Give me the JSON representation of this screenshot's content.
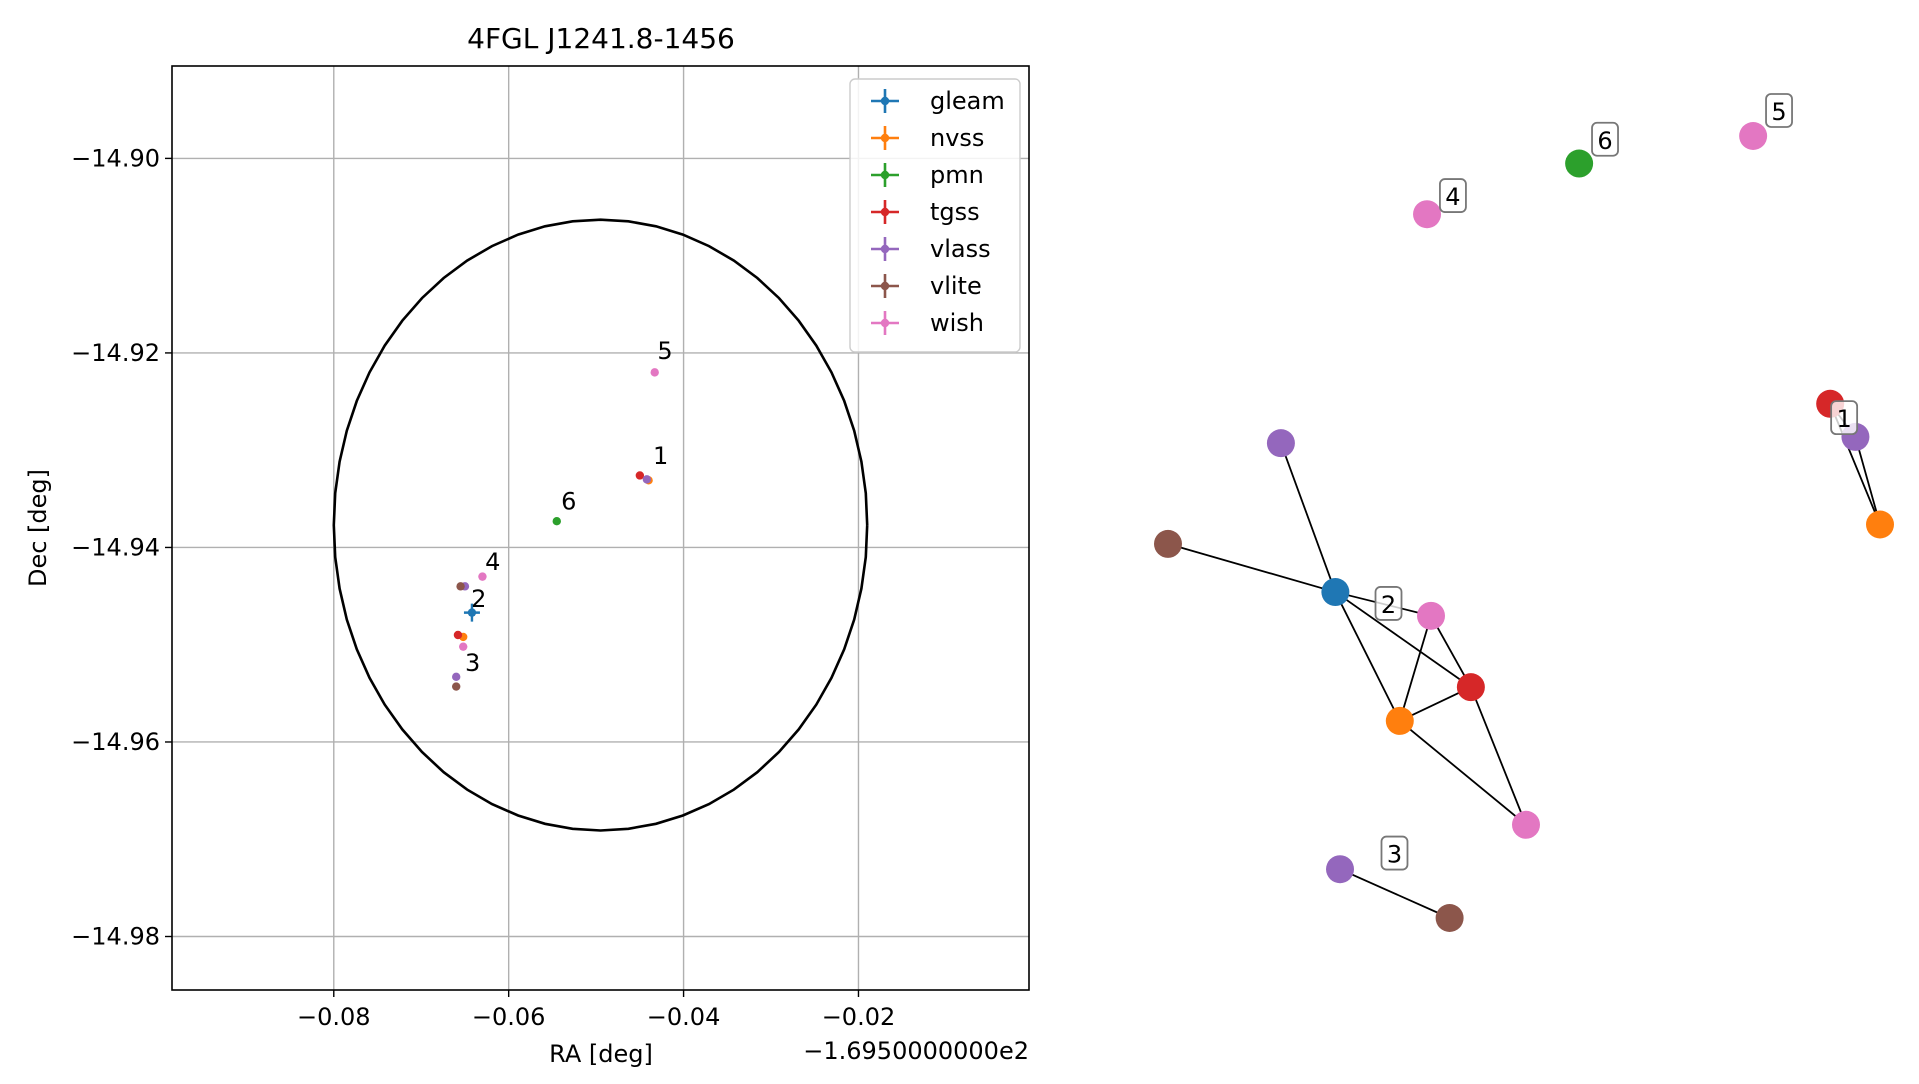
{
  "chart_data": [
    {
      "type": "scatter",
      "title": "4FGL J1241.8-1456",
      "xlabel": "RA [deg]",
      "ylabel": "Dec [deg]",
      "x_offset_text": "−1.6950000000e2",
      "xlim": [
        -0.0985,
        -0.0005
      ],
      "ylim": [
        -14.9855,
        -14.8905
      ],
      "xticks": [
        -0.08,
        -0.06,
        -0.04,
        -0.02
      ],
      "xtick_labels": [
        "−0.08",
        "−0.06",
        "−0.04",
        "−0.02"
      ],
      "yticks": [
        -14.9,
        -14.92,
        -14.94,
        -14.96,
        -14.98
      ],
      "ytick_labels": [
        "−14.90",
        "−14.92",
        "−14.94",
        "−14.96",
        "−14.98"
      ],
      "grid": true,
      "legend_position": "top-right",
      "ellipse": {
        "center": [
          -0.0495,
          -14.9377
        ],
        "semi_major": [
          0.0305,
          0.0314
        ]
      },
      "series": [
        {
          "name": "gleam",
          "color": "#1f77b4",
          "points": [
            [
              -0.0642,
              -14.9467
            ]
          ]
        },
        {
          "name": "nvss",
          "color": "#ff7f0e",
          "points": [
            [
              -0.0652,
              -14.9492
            ],
            [
              -0.044,
              -14.9331
            ]
          ]
        },
        {
          "name": "pmn",
          "color": "#2ca02c",
          "points": [
            [
              -0.0545,
              -14.9373
            ]
          ]
        },
        {
          "name": "tgss",
          "color": "#d62728",
          "points": [
            [
              -0.0658,
              -14.949
            ],
            [
              -0.045,
              -14.9326
            ]
          ]
        },
        {
          "name": "vlass",
          "color": "#9467bd",
          "points": [
            [
              -0.065,
              -14.944
            ],
            [
              -0.066,
              -14.9533
            ],
            [
              -0.0442,
              -14.933
            ]
          ]
        },
        {
          "name": "vlite",
          "color": "#8c564b",
          "points": [
            [
              -0.0655,
              -14.944
            ],
            [
              -0.066,
              -14.9543
            ]
          ]
        },
        {
          "name": "wish",
          "color": "#e377c2",
          "points": [
            [
              -0.0652,
              -14.9502
            ],
            [
              -0.063,
              -14.943
            ],
            [
              -0.0433,
              -14.922
            ]
          ]
        }
      ],
      "annotations": [
        {
          "text": "1",
          "x": -0.0435,
          "y": -14.9314
        },
        {
          "text": "2",
          "x": -0.0643,
          "y": -14.9461
        },
        {
          "text": "3",
          "x": -0.065,
          "y": -14.9527
        },
        {
          "text": "4",
          "x": -0.0627,
          "y": -14.9423
        },
        {
          "text": "5",
          "x": -0.043,
          "y": -14.9206
        },
        {
          "text": "6",
          "x": -0.054,
          "y": -14.9361
        }
      ]
    },
    {
      "type": "network",
      "nodes": [
        {
          "id": "n1",
          "color": "#d62728",
          "x": 0.899,
          "y": 0.655
        },
        {
          "id": "n2",
          "color": "#9467bd",
          "x": 0.937,
          "y": 0.602
        },
        {
          "id": "n3",
          "color": "#ff7f0e",
          "x": 0.974,
          "y": 0.462
        },
        {
          "id": "n4",
          "color": "#1f77b4",
          "x": 0.154,
          "y": 0.354
        },
        {
          "id": "n5",
          "color": "#8c564b",
          "x": -0.098,
          "y": 0.431
        },
        {
          "id": "n6",
          "color": "#9467bd",
          "x": 0.072,
          "y": 0.592
        },
        {
          "id": "n7",
          "color": "#e377c2",
          "x": 0.298,
          "y": 0.316
        },
        {
          "id": "n8",
          "color": "#d62728",
          "x": 0.358,
          "y": 0.202
        },
        {
          "id": "n9",
          "color": "#ff7f0e",
          "x": 0.251,
          "y": 0.148
        },
        {
          "id": "n10",
          "color": "#e377c2",
          "x": 0.441,
          "y": -0.018
        },
        {
          "id": "n11",
          "color": "#9467bd",
          "x": 0.161,
          "y": -0.089
        },
        {
          "id": "n12",
          "color": "#8c564b",
          "x": 0.326,
          "y": -0.167
        },
        {
          "id": "n13",
          "color": "#e377c2",
          "x": 0.292,
          "y": 0.958
        },
        {
          "id": "n14",
          "color": "#2ca02c",
          "x": 0.521,
          "y": 1.039
        },
        {
          "id": "n15",
          "color": "#e377c2",
          "x": 0.783,
          "y": 1.083
        }
      ],
      "edges": [
        [
          "n1",
          "n2"
        ],
        [
          "n1",
          "n3"
        ],
        [
          "n2",
          "n3"
        ],
        [
          "n4",
          "n5"
        ],
        [
          "n4",
          "n6"
        ],
        [
          "n4",
          "n7"
        ],
        [
          "n4",
          "n8"
        ],
        [
          "n4",
          "n9"
        ],
        [
          "n7",
          "n8"
        ],
        [
          "n7",
          "n9"
        ],
        [
          "n8",
          "n9"
        ],
        [
          "n8",
          "n10"
        ],
        [
          "n9",
          "n10"
        ],
        [
          "n11",
          "n12"
        ]
      ],
      "labels": [
        {
          "text": "1",
          "x": 0.92,
          "y": 0.632
        },
        {
          "text": "2",
          "x": 0.234,
          "y": 0.335
        },
        {
          "text": "3",
          "x": 0.243,
          "y": -0.064
        },
        {
          "text": "4",
          "x": 0.331,
          "y": 0.987
        },
        {
          "text": "5",
          "x": 0.822,
          "y": 1.123
        },
        {
          "text": "6",
          "x": 0.56,
          "y": 1.077
        }
      ]
    }
  ]
}
